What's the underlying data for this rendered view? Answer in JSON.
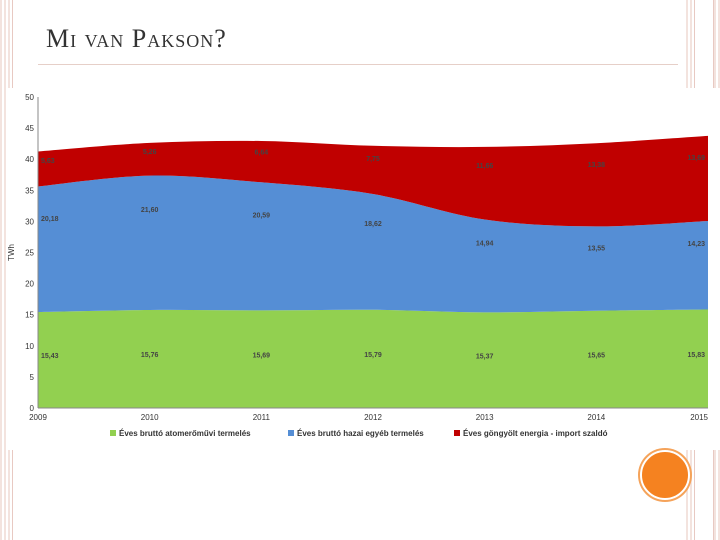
{
  "slide": {
    "title": "Mi van Pakson?"
  },
  "colors": {
    "nuclear": "#92d050",
    "domestic": "#558ed5",
    "import": "#c00000",
    "accent_circle": "#f58220"
  },
  "chart_data": {
    "type": "area",
    "stacked": true,
    "title": "",
    "xlabel": "",
    "ylabel": "TWh",
    "ylim": [
      0,
      50
    ],
    "yticks": [
      0,
      5,
      10,
      15,
      20,
      25,
      30,
      35,
      40,
      45,
      50
    ],
    "x": [
      "2009",
      "2010",
      "2011",
      "2012",
      "2013",
      "2014",
      "2015"
    ],
    "grid": false,
    "legend_position": "bottom",
    "series": [
      {
        "name": "Éves bruttó atomerőművi termelés",
        "color": "#92d050",
        "values": [
          15.43,
          15.76,
          15.69,
          15.79,
          15.37,
          15.65,
          15.83
        ],
        "labels": [
          "15,43",
          "15,76",
          "15,69",
          "15,79",
          "15,37",
          "15,65",
          "15,83"
        ]
      },
      {
        "name": "Éves bruttó hazai egyéb termelés",
        "color": "#558ed5",
        "values": [
          20.18,
          21.6,
          20.59,
          18.62,
          14.94,
          13.55,
          14.23
        ],
        "labels": [
          "20,18",
          "21,60",
          "20,59",
          "18,62",
          "14,94",
          "13,55",
          "14,23"
        ]
      },
      {
        "name": "Éves göngyölt energia - import szaldó",
        "color": "#c00000",
        "values": [
          5.63,
          5.26,
          6.64,
          7.75,
          11.66,
          13.38,
          13.69
        ],
        "labels": [
          "5,63",
          "5,26",
          "6,64",
          "7,75",
          "11,66",
          "13,38",
          "13,69"
        ]
      }
    ]
  }
}
